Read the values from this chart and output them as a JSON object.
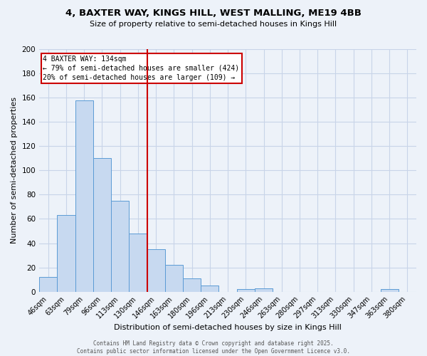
{
  "title_line1": "4, BAXTER WAY, KINGS HILL, WEST MALLING, ME19 4BB",
  "title_line2": "Size of property relative to semi-detached houses in Kings Hill",
  "xlabel": "Distribution of semi-detached houses by size in Kings Hill",
  "ylabel": "Number of semi-detached properties",
  "bin_labels": [
    "46sqm",
    "63sqm",
    "79sqm",
    "96sqm",
    "113sqm",
    "130sqm",
    "146sqm",
    "163sqm",
    "180sqm",
    "196sqm",
    "213sqm",
    "230sqm",
    "246sqm",
    "263sqm",
    "280sqm",
    "297sqm",
    "313sqm",
    "330sqm",
    "347sqm",
    "363sqm",
    "380sqm"
  ],
  "bar_values": [
    12,
    63,
    158,
    110,
    75,
    48,
    35,
    22,
    11,
    5,
    0,
    2,
    3,
    0,
    0,
    0,
    0,
    0,
    0,
    2,
    0
  ],
  "bar_color": "#c7d9f0",
  "bar_edge_color": "#5b9bd5",
  "grid_color": "#c8d4e8",
  "background_color": "#edf2f9",
  "property_label": "4 BAXTER WAY: 134sqm",
  "annotation_smaller": "← 79% of semi-detached houses are smaller (424)",
  "annotation_larger": "20% of semi-detached houses are larger (109) →",
  "vline_color": "#cc0000",
  "vline_x": 5.52,
  "annotation_box_color": "#ffffff",
  "annotation_box_edge": "#cc0000",
  "footer_line1": "Contains HM Land Registry data © Crown copyright and database right 2025.",
  "footer_line2": "Contains public sector information licensed under the Open Government Licence v3.0.",
  "ylim": [
    0,
    200
  ],
  "yticks": [
    0,
    20,
    40,
    60,
    80,
    100,
    120,
    140,
    160,
    180,
    200
  ],
  "title1_fontsize": 9.5,
  "title2_fontsize": 8.0,
  "xlabel_fontsize": 8.0,
  "ylabel_fontsize": 8.0,
  "xtick_fontsize": 7.0,
  "ytick_fontsize": 7.5,
  "annot_fontsize": 7.0,
  "footer_fontsize": 5.5
}
